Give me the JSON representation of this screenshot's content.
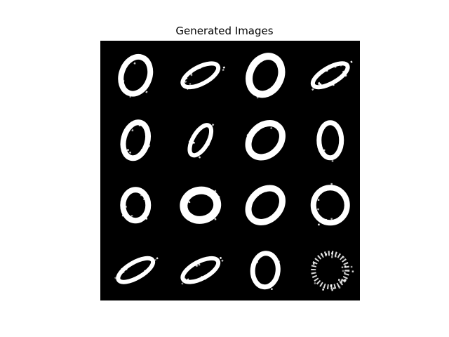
{
  "title": "Generated Images",
  "grid": {
    "rows": 4,
    "cols": 4,
    "background": "#000000",
    "stroke_color": "#ffffff",
    "cells": [
      {
        "shape": "zero-upright"
      },
      {
        "shape": "zero-flat-tilted"
      },
      {
        "shape": "zero-upright-bold"
      },
      {
        "shape": "zero-flat-noisy"
      },
      {
        "shape": "zero-upright-noisy"
      },
      {
        "shape": "zero-narrow-tilted"
      },
      {
        "shape": "zero-tilted-bold"
      },
      {
        "shape": "zero-teardrop"
      },
      {
        "shape": "zero-round-noisy"
      },
      {
        "shape": "zero-round-bold"
      },
      {
        "shape": "zero-tilted-bold"
      },
      {
        "shape": "zero-round"
      },
      {
        "shape": "zero-flat-noisy"
      },
      {
        "shape": "zero-flat-tilted"
      },
      {
        "shape": "zero-upright-small"
      },
      {
        "shape": "zero-dotted-round"
      }
    ]
  }
}
